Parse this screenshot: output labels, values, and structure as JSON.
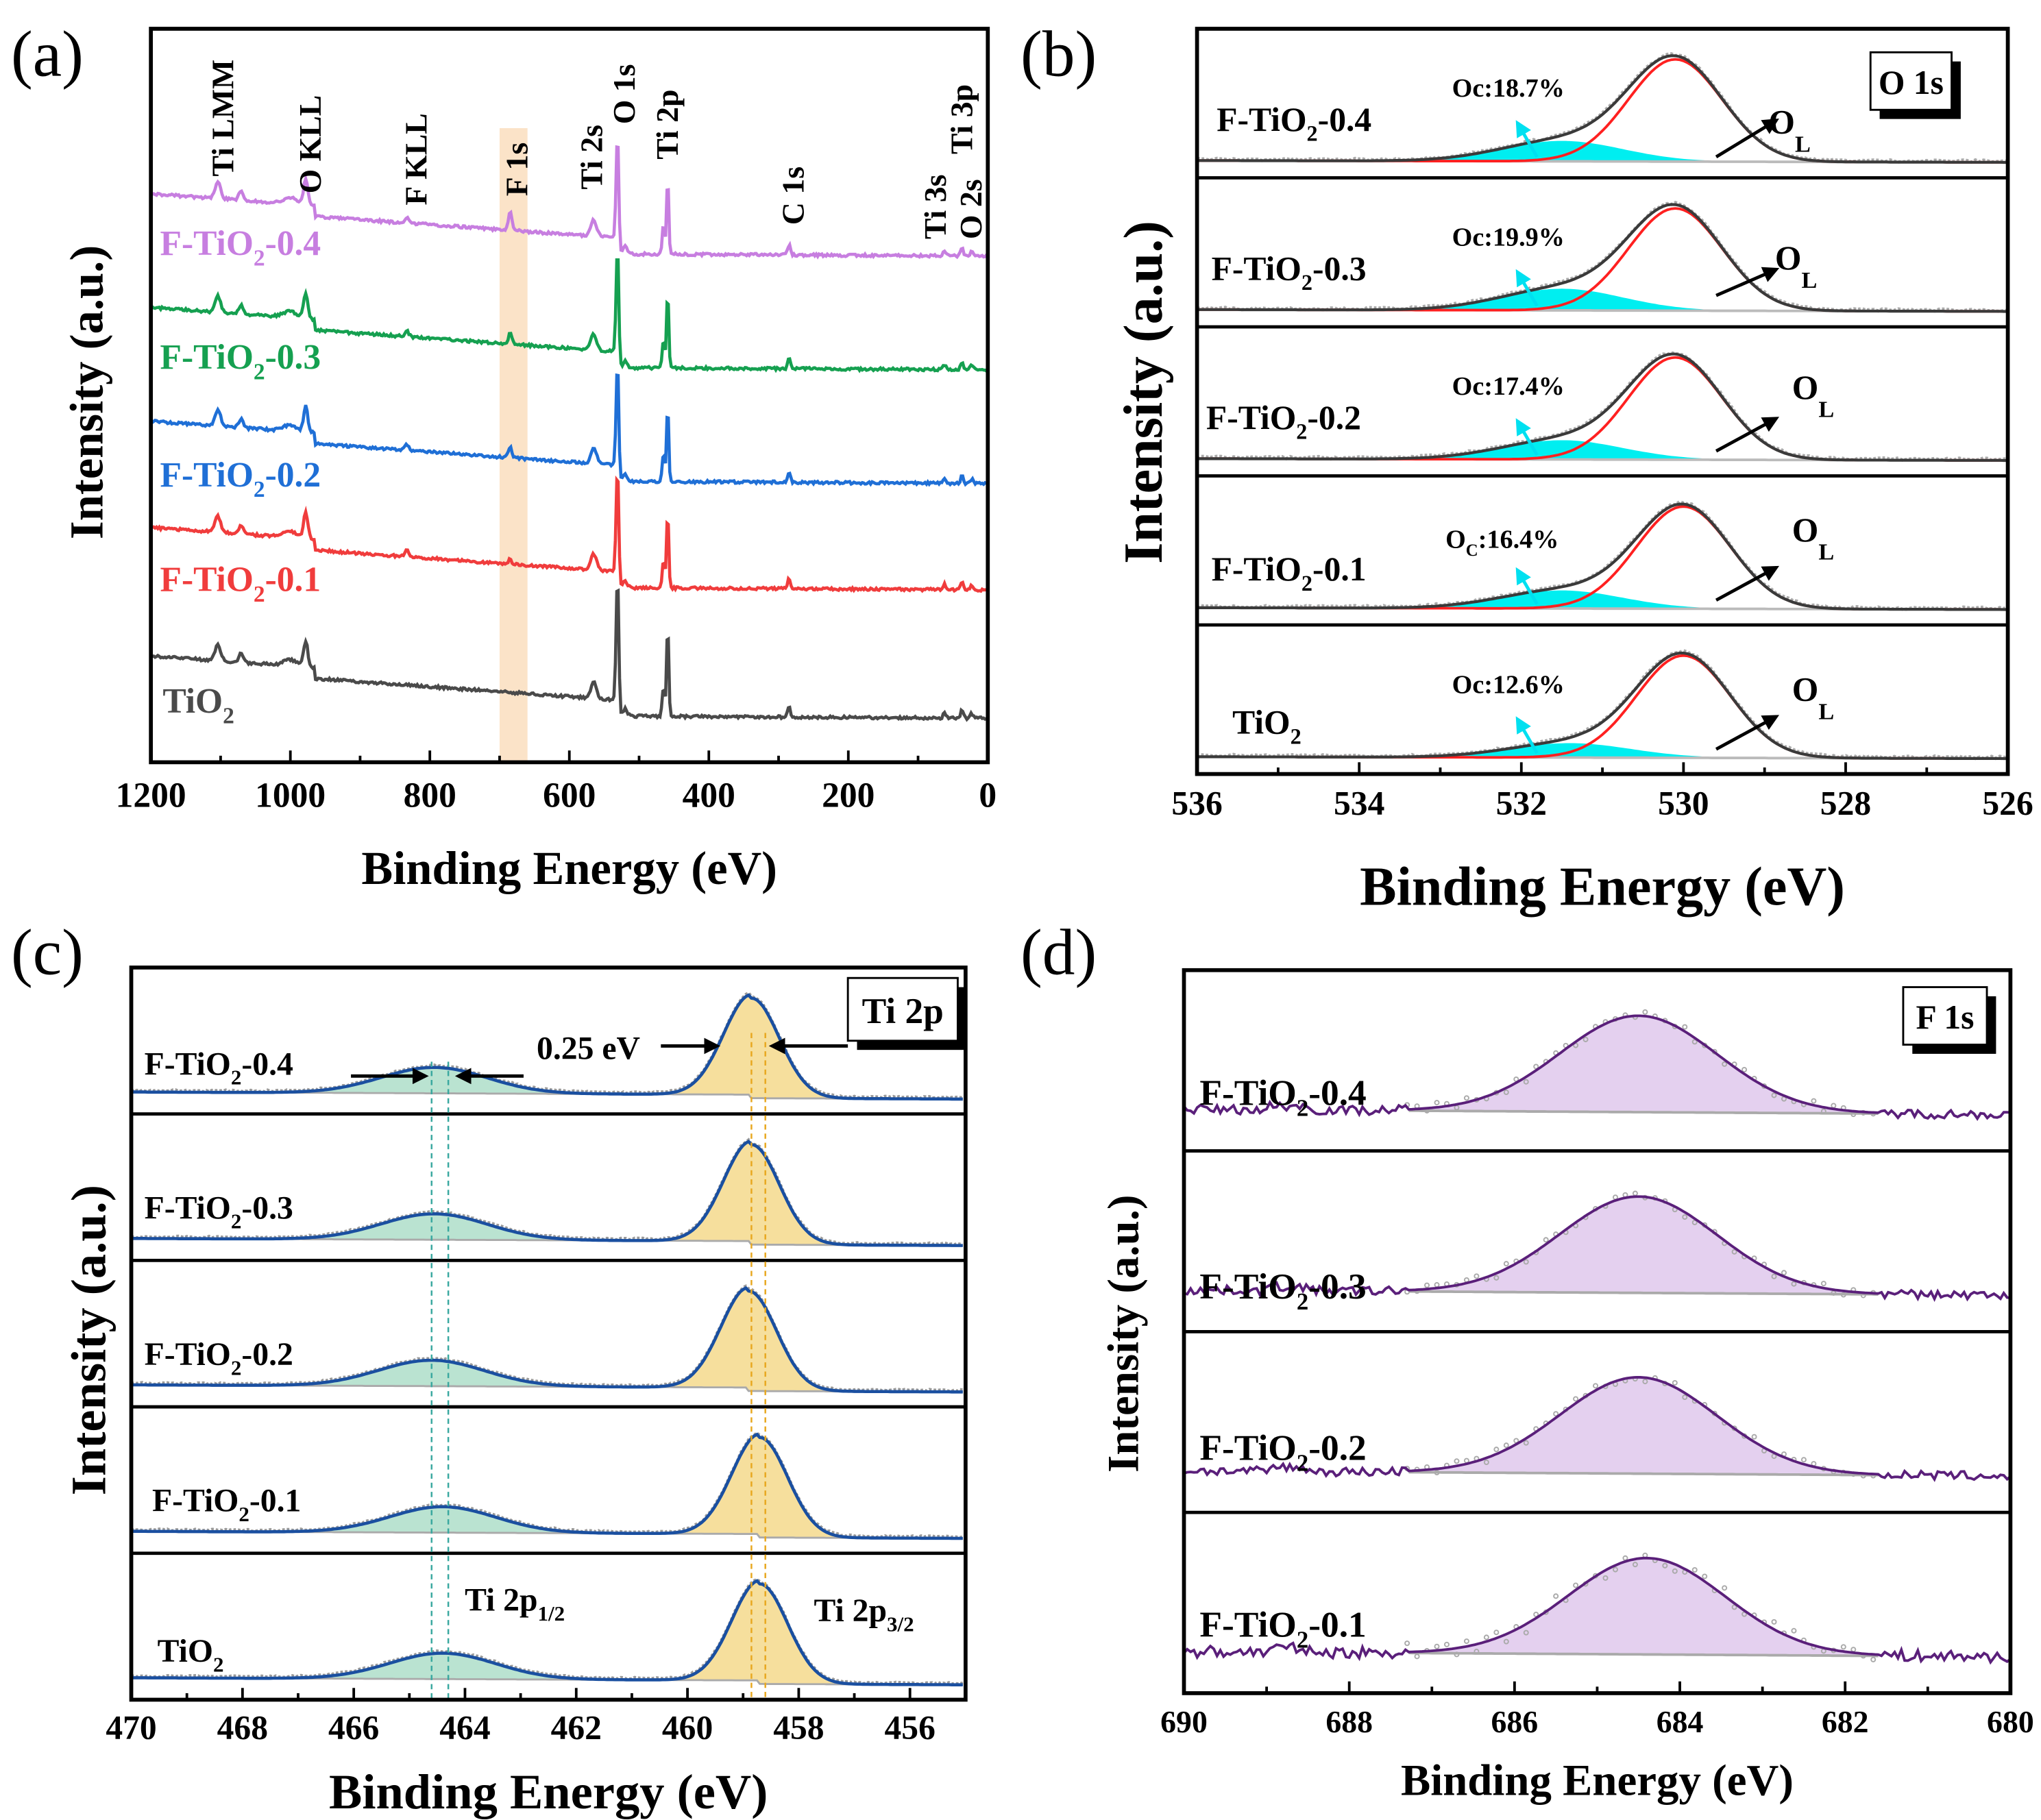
{
  "chart_data": [
    {
      "type": "line",
      "panel": "(a)",
      "title": "",
      "xlabel": "Binding Energy (eV)",
      "ylabel": "Intensity (a.u.)",
      "xlim": [
        1200,
        0
      ],
      "xticks": [
        "1200",
        "1000",
        "800",
        "600",
        "400",
        "200",
        "0"
      ],
      "highlight": {
        "label": "F 1s",
        "range_eV": [
          700,
          660
        ],
        "color": "#fbe3c8"
      },
      "peak_labels": [
        {
          "text": "Ti LMM",
          "eV": 1104
        },
        {
          "text": "O KLL",
          "eV": 978
        },
        {
          "text": "F KLL",
          "eV": 833
        },
        {
          "text": "F 1s",
          "eV": 685
        },
        {
          "text": "Ti 2s",
          "eV": 565
        },
        {
          "text": "O 1s",
          "eV": 531
        },
        {
          "text": "Ti 2p",
          "eV": 459
        },
        {
          "text": "C 1s",
          "eV": 285
        },
        {
          "text": "Ti 3s",
          "eV": 62
        },
        {
          "text": "Ti 3p",
          "eV": 37
        },
        {
          "text": "O 2s",
          "eV": 23
        }
      ],
      "series": [
        {
          "pre": "F-TiO",
          "sub": "2",
          "post": "-0.4",
          "color": "#c77ee0",
          "offset": 69,
          "f1s": 2.6
        },
        {
          "pre": "F-TiO",
          "sub": "2",
          "post": "-0.3",
          "color": "#15a050",
          "offset": 53.5,
          "f1s": 1.4
        },
        {
          "pre": "F-TiO",
          "sub": "2",
          "post": "-0.2",
          "color": "#1f6fd6",
          "offset": 38,
          "f1s": 1.4
        },
        {
          "pre": "F-TiO",
          "sub": "2",
          "post": "-0.1",
          "color": "#f03c3c",
          "offset": 23.5,
          "f1s": 0.6
        },
        {
          "pre": "TiO",
          "sub": "2",
          "post": "",
          "color": "#4a4a4a",
          "offset": 6,
          "f1s": 0
        }
      ]
    },
    {
      "type": "line",
      "panel": "(b)",
      "box_label": "O 1s",
      "xlabel": "Binding Energy (eV)",
      "ylabel": "Intensity (a.u.)",
      "xlim": [
        536,
        526
      ],
      "xticks": [
        "536",
        "534",
        "532",
        "530",
        "528",
        "526"
      ],
      "components": {
        "lattice": "O",
        "lattice_sub": "L",
        "lattice_color": "#ff2020",
        "defect_color": "#00eef0",
        "envelope_color": "#3a3a3a"
      },
      "series": [
        {
          "pre": "F-TiO",
          "sub": "2",
          "post": "-0.4",
          "oc_pre": "Oc",
          "oc_sub": "",
          "oc_val": ":18.7%",
          "OL_eV": 530.1,
          "Oc_eV": 531.5,
          "Oc_height": 0.17
        },
        {
          "pre": "F-TiO",
          "sub": "2",
          "post": "-0.3",
          "oc_pre": "Oc",
          "oc_sub": "",
          "oc_val": ":19.9%",
          "OL_eV": 530.1,
          "Oc_eV": 531.5,
          "Oc_height": 0.18
        },
        {
          "pre": "F-TiO",
          "sub": "2",
          "post": "-0.2",
          "oc_pre": "Oc",
          "oc_sub": "",
          "oc_val": ":17.4%",
          "OL_eV": 530.1,
          "Oc_eV": 531.5,
          "Oc_height": 0.16
        },
        {
          "pre": "F-TiO",
          "sub": "2",
          "post": "-0.1",
          "oc_pre": "O",
          "oc_sub": "C",
          "oc_val": ":16.4%",
          "OL_eV": 530.0,
          "Oc_eV": 531.5,
          "Oc_height": 0.15
        },
        {
          "pre": "TiO",
          "sub": "2",
          "post": "",
          "oc_pre": "Oc",
          "oc_sub": "",
          "oc_val": ":12.6%",
          "OL_eV": 530.0,
          "Oc_eV": 531.4,
          "Oc_height": 0.12
        }
      ]
    },
    {
      "type": "line",
      "panel": "(c)",
      "box_label": "Ti 2p",
      "xlabel": "Binding Energy (eV)",
      "ylabel": "Intensity (a.u.)",
      "xlim": [
        470,
        455
      ],
      "xticks": [
        "470",
        "468",
        "466",
        "464",
        "462",
        "460",
        "458",
        "456"
      ],
      "shift_label": "0.25 eV",
      "p12": {
        "pre": "Ti 2p",
        "sub": "1/2"
      },
      "p32": {
        "pre": "Ti 2p",
        "sub": "3/2"
      },
      "dashed_eV": {
        "p12": [
          464.6,
          464.3
        ],
        "p32": [
          458.85,
          458.6
        ]
      },
      "colors": {
        "envelope": "#1a4fa0",
        "p32_fill": "#f5d98c",
        "p12_fill": "#a9dcc6"
      },
      "series": [
        {
          "pre": "F-TiO",
          "sub": "2",
          "post": "-0.4",
          "p32_eV": 458.85
        },
        {
          "pre": "F-TiO",
          "sub": "2",
          "post": "-0.3",
          "p32_eV": 458.85
        },
        {
          "pre": "F-TiO",
          "sub": "2",
          "post": "-0.2",
          "p32_eV": 458.9
        },
        {
          "pre": "F-TiO",
          "sub": "2",
          "post": "-0.1",
          "p32_eV": 458.7
        },
        {
          "pre": "TiO",
          "sub": "2",
          "post": "",
          "p32_eV": 458.7
        }
      ]
    },
    {
      "type": "line",
      "panel": "(d)",
      "box_label": "F 1s",
      "xlabel": "Binding Energy (eV)",
      "ylabel": "Intensity (a.u.)",
      "xlim": [
        690,
        680
      ],
      "xticks": [
        "690",
        "688",
        "686",
        "684",
        "682",
        "680"
      ],
      "colors": {
        "line": "#5a1f7a",
        "fill": "#e4d0ef"
      },
      "series": [
        {
          "pre": "F-TiO",
          "sub": "2",
          "post": "-0.4",
          "peak_eV": 684.5
        },
        {
          "pre": "F-TiO",
          "sub": "2",
          "post": "-0.3",
          "peak_eV": 684.5
        },
        {
          "pre": "F-TiO",
          "sub": "2",
          "post": "-0.2",
          "peak_eV": 684.5
        },
        {
          "pre": "F-TiO",
          "sub": "2",
          "post": "-0.1",
          "peak_eV": 684.4
        }
      ]
    }
  ]
}
